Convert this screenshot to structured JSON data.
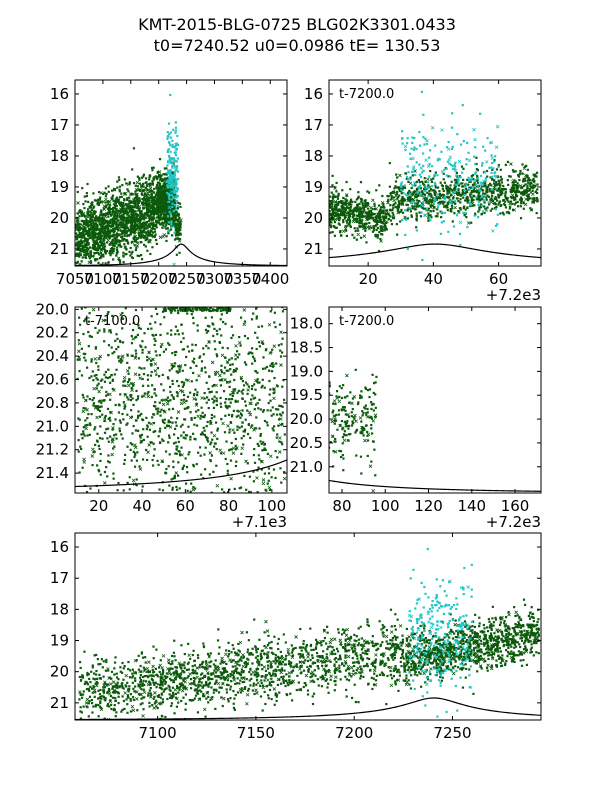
{
  "figure": {
    "title_line1": "KMT-2015-BLG-0725 BLG02K3301.0433",
    "title_line2": "t0=7240.52 u0=0.0986 tE= 130.53"
  },
  "model": {
    "t0": 7240.52,
    "u0": 0.0986,
    "tE": 130.53,
    "baseline_mag": 21.55,
    "f_s": 0.1
  },
  "colors": {
    "data_main": "#0b5a0b",
    "data_peak": "#22c6c6",
    "model_line": "#000000"
  },
  "chart_data": [
    {
      "type": "scatter",
      "name": "full-season",
      "xlim": [
        7050,
        7430
      ],
      "ylim": [
        21.55,
        15.55
      ],
      "x_ticks": [
        7050,
        7100,
        7150,
        7200,
        7250,
        7300,
        7350,
        7400
      ],
      "x_tick_labels": [
        "7050",
        "7100",
        "7150",
        "7200",
        "7250",
        "7300",
        "7350",
        "7400"
      ],
      "y_ticks": [
        16,
        17,
        18,
        19,
        20,
        21
      ],
      "y_tick_labels": [
        "16",
        "17",
        "18",
        "19",
        "20",
        "21"
      ],
      "annotation": "",
      "x_offset_label": "",
      "model_tmin": 7050,
      "time_offset": 0,
      "segments": [
        {
          "t0": 7052,
          "t1": 7197,
          "n": 1600,
          "c": 20.7,
          "sd": 0.55,
          "trend": 0.007,
          "color": "data_main"
        },
        {
          "t0": 7197,
          "t1": 7230,
          "n": 600,
          "c": 19.45,
          "sd": 0.45,
          "trend": 0,
          "color": "data_main"
        },
        {
          "t0": 7215,
          "t1": 7235,
          "n": 180,
          "c": 18.6,
          "sd": 0.8,
          "trend": 0,
          "color": "data_peak"
        },
        {
          "t0": 7230,
          "t1": 7240,
          "n": 80,
          "c": 20.3,
          "sd": 0.35,
          "trend": 0,
          "color": "data_main"
        }
      ]
    },
    {
      "type": "scatter",
      "name": "zoom-peak",
      "xlim": [
        7208,
        7273
      ],
      "ylim": [
        21.55,
        15.55
      ],
      "x_ticks": [
        7220,
        7240,
        7260
      ],
      "x_tick_labels": [
        "20",
        "40",
        "60"
      ],
      "y_ticks": [
        16,
        17,
        18,
        19,
        20,
        21
      ],
      "y_tick_labels": [
        "16",
        "17",
        "18",
        "19",
        "20",
        "21"
      ],
      "annotation": "t-7200.0",
      "x_offset_label": "+7.2e3",
      "model_tmin": 7208,
      "time_offset": 7200,
      "segments": [
        {
          "t0": 7208,
          "t1": 7226,
          "n": 500,
          "c": 19.7,
          "sd": 0.35,
          "trend": -0.02,
          "color": "data_main"
        },
        {
          "t0": 7226,
          "t1": 7272,
          "n": 900,
          "c": 19.5,
          "sd": 0.35,
          "trend": 0.01,
          "color": "data_main"
        },
        {
          "t0": 7230,
          "t1": 7260,
          "n": 260,
          "c": 18.7,
          "sd": 0.9,
          "trend": 0,
          "color": "data_peak"
        }
      ]
    },
    {
      "type": "scatter",
      "name": "zoom-early",
      "xlim": [
        7109,
        7207
      ],
      "ylim": [
        21.57,
        19.98
      ],
      "x_ticks": [
        7120,
        7140,
        7160,
        7180,
        7200
      ],
      "x_tick_labels": [
        "20",
        "40",
        "60",
        "80",
        "100"
      ],
      "y_ticks": [
        20.0,
        20.2,
        20.4,
        20.6,
        20.8,
        21.0,
        21.2,
        21.4
      ],
      "y_tick_labels": [
        "20.0",
        "20.2",
        "20.4",
        "20.6",
        "20.8",
        "21.0",
        "21.2",
        "21.4"
      ],
      "annotation": "t-7100.0",
      "x_offset_label": "+7.1e3",
      "model_tmin": 7109,
      "time_offset": 7100,
      "segments": [
        {
          "t0": 7110,
          "t1": 7206,
          "n": 1400,
          "c": 20.8,
          "sd": 0.5,
          "trend": 0,
          "color": "data_main"
        },
        {
          "t0": 7150,
          "t1": 7181,
          "n": 120,
          "c": 20.0,
          "sd": 0.01,
          "trend": 0,
          "color": "data_main"
        }
      ]
    },
    {
      "type": "scatter",
      "name": "zoom-tail",
      "xlim": [
        7274,
        7372
      ],
      "ylim": [
        21.55,
        17.65
      ],
      "x_ticks": [
        7280,
        7300,
        7320,
        7340,
        7360
      ],
      "x_tick_labels": [
        "80",
        "100",
        "120",
        "140",
        "160"
      ],
      "y_ticks": [
        18.0,
        18.5,
        19.0,
        19.5,
        20.0,
        20.5,
        21.0
      ],
      "y_tick_labels": [
        "18.0",
        "18.5",
        "19.0",
        "19.5",
        "20.0",
        "20.5",
        "21.0"
      ],
      "annotation": "t-7200.0",
      "x_offset_label": "+7.2e3",
      "model_tmin": 7274,
      "time_offset": 7200,
      "segments": [
        {
          "t0": 7274,
          "t1": 7296,
          "n": 180,
          "c": 20.15,
          "sd": 0.45,
          "trend": 0.01,
          "color": "data_main"
        }
      ]
    },
    {
      "type": "scatter",
      "name": "season-wide",
      "xlim": [
        7058,
        7295
      ],
      "ylim": [
        21.55,
        15.55
      ],
      "x_ticks": [
        7100,
        7150,
        7200,
        7250
      ],
      "x_tick_labels": [
        "7100",
        "7150",
        "7200",
        "7250"
      ],
      "y_ticks": [
        16,
        17,
        18,
        19,
        20,
        21
      ],
      "y_tick_labels": [
        "16",
        "17",
        "18",
        "19",
        "20",
        "21"
      ],
      "annotation": "",
      "x_offset_label": "",
      "model_tmin": 7058,
      "time_offset": 0,
      "segments": [
        {
          "t0": 7060,
          "t1": 7225,
          "n": 1600,
          "c": 20.7,
          "sd": 0.5,
          "trend": 0.008,
          "color": "data_main"
        },
        {
          "t0": 7225,
          "t1": 7294,
          "n": 1000,
          "c": 19.6,
          "sd": 0.4,
          "trend": 0.012,
          "color": "data_main"
        },
        {
          "t0": 7228,
          "t1": 7260,
          "n": 260,
          "c": 18.8,
          "sd": 0.9,
          "trend": 0,
          "color": "data_peak"
        }
      ]
    }
  ]
}
